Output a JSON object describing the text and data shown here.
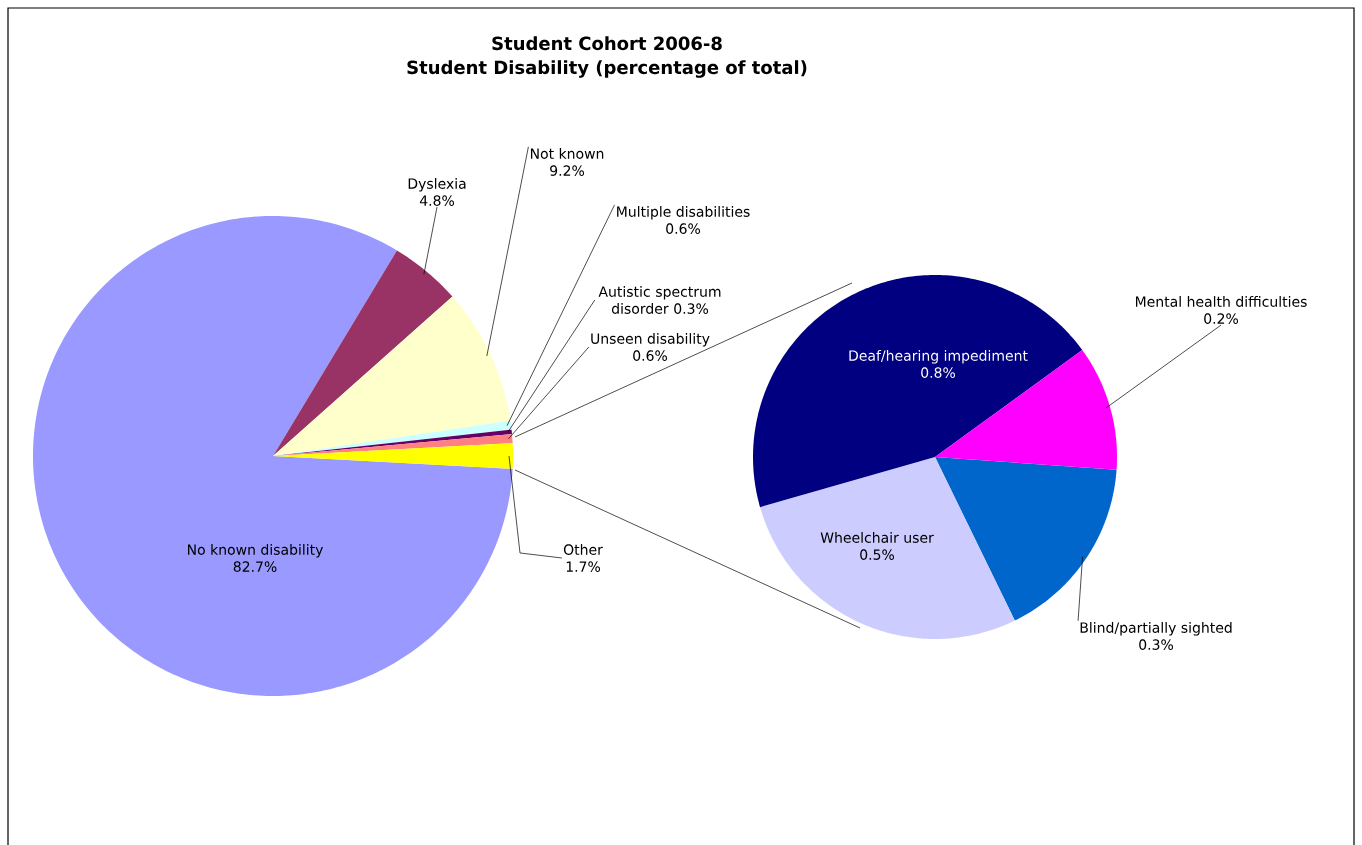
{
  "chart_data": [
    {
      "type": "pie",
      "title": "Student Cohort 2006-8",
      "subtitle": "Student Disability  (percentage of total)",
      "categories": [
        "No known disability",
        "Dyslexia",
        "Not known",
        "Multiple disabilities",
        "Autistic spectrum disorder",
        "Unseen disability",
        "Other"
      ],
      "values": [
        82.7,
        4.8,
        9.2,
        0.6,
        0.3,
        0.6,
        1.7
      ],
      "value_labels": [
        "82.7%",
        "4.8%",
        "9.2%",
        "0.6%",
        "0.3%",
        "0.6%",
        "1.7%"
      ],
      "colors": [
        "#9999ff",
        "#993366",
        "#ffffcc",
        "#ccffff",
        "#660066",
        "#ff8080",
        "#ffff00"
      ]
    },
    {
      "type": "pie",
      "categories": [
        "Blind/partially sighted",
        "Wheelchair user",
        "Deaf/hearing impediment",
        "Mental health difficulties"
      ],
      "values": [
        0.3,
        0.5,
        0.8,
        0.2
      ],
      "value_labels": [
        "0.3%",
        "0.5%",
        "0.8%",
        "0.2%"
      ],
      "colors": [
        "#0066cc",
        "#ccccff",
        "#000080",
        "#ff00ff"
      ]
    }
  ]
}
